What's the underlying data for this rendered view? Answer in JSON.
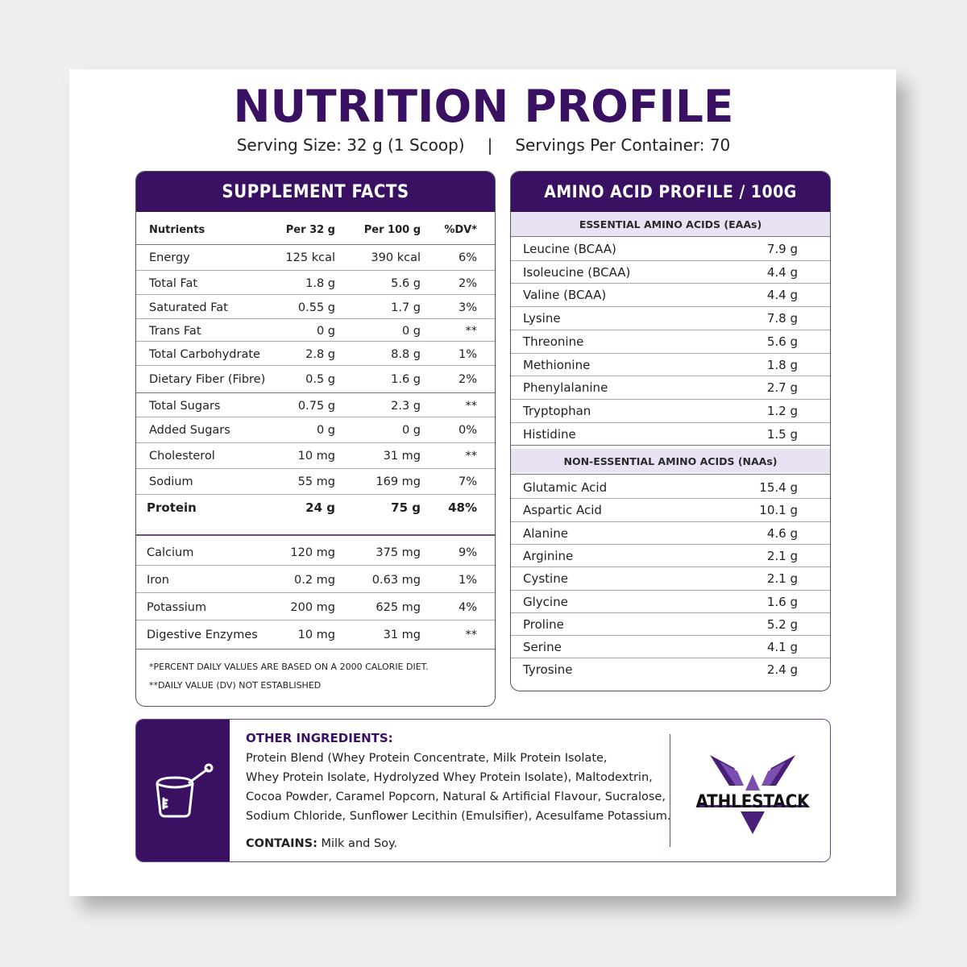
{
  "title": "NUTRITION PROFILE",
  "serving_size": "Serving Size: 32 g (1 Scoop)",
  "serving_separator": "|",
  "servings_per_container": "Servings Per Container: 70",
  "supplement_facts": {
    "heading": "SUPPLEMENT FACTS",
    "columns": [
      "Nutrients",
      "Per 32 g",
      "Per 100 g",
      "%DV*"
    ],
    "rows": [
      [
        "Energy",
        "125 kcal",
        "390 kcal",
        "6%"
      ],
      [
        "Total Fat",
        "1.8 g",
        "5.6 g",
        "2%"
      ],
      [
        "Saturated Fat",
        "0.55 g",
        "1.7 g",
        "3%"
      ],
      [
        "Trans Fat",
        "0 g",
        "0 g",
        "**"
      ],
      [
        "Total Carbohydrate",
        "2.8 g",
        "8.8 g",
        "1%"
      ],
      [
        "Dietary Fiber (Fibre)",
        "0.5 g",
        "1.6 g",
        "2%"
      ],
      [
        "Total Sugars",
        "0.75 g",
        "2.3 g",
        "**"
      ],
      [
        "Added Sugars",
        "0 g",
        "0 g",
        "0%"
      ],
      [
        "Cholesterol",
        "10 mg",
        "31 mg",
        "**"
      ],
      [
        "Sodium",
        "55 mg",
        "169 mg",
        "7%"
      ],
      [
        "Protein",
        "24 g",
        "75 g",
        "48%"
      ],
      [
        "Calcium",
        "120 mg",
        "375 mg",
        "9%"
      ],
      [
        "Iron",
        "0.2 mg",
        "0.63 mg",
        "1%"
      ],
      [
        "Potassium",
        "200 mg",
        "625 mg",
        "4%"
      ],
      [
        "Digestive Enzymes",
        "10 mg",
        "31 mg",
        "**"
      ]
    ],
    "footnote_1": "*PERCENT DAILY VALUES ARE BASED ON A 2000 CALORIE DIET.",
    "footnote_2": "**DAILY VALUE (DV) NOT ESTABLISHED"
  },
  "amino_profile": {
    "heading": "AMINO ACID PROFILE / 100G",
    "essential_heading": "ESSENTIAL AMINO ACIDS (EAAs)",
    "essential": [
      [
        "Leucine (BCAA)",
        "7.9 g"
      ],
      [
        "Isoleucine (BCAA)",
        "4.4 g"
      ],
      [
        "Valine (BCAA)",
        "4.4 g"
      ],
      [
        "Lysine",
        "7.8 g"
      ],
      [
        "Threonine",
        "5.6 g"
      ],
      [
        "Methionine",
        "1.8 g"
      ],
      [
        "Phenylalanine",
        "2.7 g"
      ],
      [
        "Tryptophan",
        "1.2 g"
      ],
      [
        "Histidine",
        "1.5 g"
      ]
    ],
    "nonessential_heading": "NON-ESSENTIAL AMINO ACIDS (NAAs)",
    "nonessential": [
      [
        "Glutamic Acid",
        "15.4 g"
      ],
      [
        "Aspartic Acid",
        "10.1 g"
      ],
      [
        "Alanine",
        "4.6 g"
      ],
      [
        "Arginine",
        "2.1 g"
      ],
      [
        "Cystine",
        "2.1 g"
      ],
      [
        "Glycine",
        "1.6 g"
      ],
      [
        "Proline",
        "5.2 g"
      ],
      [
        "Serine",
        "4.1 g"
      ],
      [
        "Tyrosine",
        "2.4 g"
      ]
    ]
  },
  "ingredients": {
    "heading": "OTHER INGREDIENTS:",
    "lines": [
      "Protein Blend (Whey Protein Concentrate, Milk Protein Isolate,",
      "Whey Protein Isolate, Hydrolyzed Whey Protein Isolate), Maltodextrin,",
      "Cocoa Powder, Caramel Popcorn, Natural & Artificial Flavour, Sucralose,",
      "Sodium Chloride, Sunflower Lecithin (Emulsifier), Acesulfame Potassium."
    ],
    "contains_label": "CONTAINS:",
    "contains_value": "Milk and Soy."
  },
  "brand": {
    "logo_text": "ATHLESTACK",
    "icon": "scoop-icon"
  },
  "colors": {
    "brand_purple": "#3a1162",
    "light_lavender": "#e9e2f5"
  }
}
